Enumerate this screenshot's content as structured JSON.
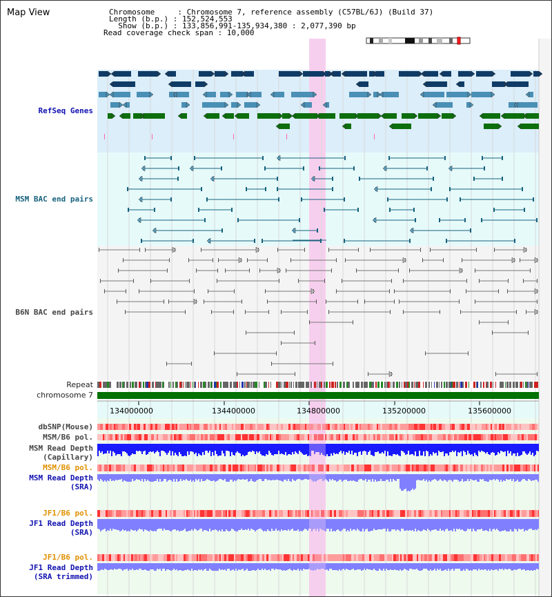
{
  "view": {
    "title": "Map View",
    "info_lines": [
      "Chromosome     : Chromosome 7, reference assembly (C57BL/6J) (Build 37)",
      "Length (b.p.) : 152,524,553",
      "  Show (b.p.) : 133,856,991-135,934,380 : 2,077,390 bp",
      "Read coverage check span : 10,000"
    ]
  },
  "tracks": {
    "refseq": "RefSeq Genes",
    "msm_bac": "MSM BAC end pairs",
    "b6n_bac": "B6N BAC end pairs",
    "repeat": "Repeat",
    "chromosome": "chromosome 7",
    "dbsnp": "dbSNP(Mouse)",
    "msm_b6_pol_1": "MSM/B6 pol.",
    "msm_depth_cap_1": "MSM Read Depth",
    "msm_depth_cap_2": "(Capillary)",
    "msm_b6_pol_2": "MSM/B6 pol.",
    "msm_depth_sra_1": "MSM Read Depth",
    "msm_depth_sra_2": "(SRA)",
    "jf1_b6_pol_1": "JF1/B6 pol.",
    "jf1_depth_sra_1": "JF1 Read Depth",
    "jf1_depth_sra_2": "(SRA)",
    "jf1_b6_pol_2": "JF1/B6 pol.",
    "jf1_depth_trim_1": "JF1 Read Depth",
    "jf1_depth_trim_2": "(SRA trimmed)"
  },
  "axis": {
    "ticks": [
      "134000000",
      "134400000",
      "134800000",
      "135200000",
      "135600000"
    ]
  },
  "colors": {
    "refseq_bg": "#dbeefa",
    "bac_bg": "#e6fafa",
    "b6n_bg": "#f4f4f4",
    "highlight": "#f7cfee",
    "chromosome": "#007000",
    "depth_blue": "#1a1aff",
    "depth_lavender": "#8080ff",
    "snp_red": "#ff4040"
  }
}
